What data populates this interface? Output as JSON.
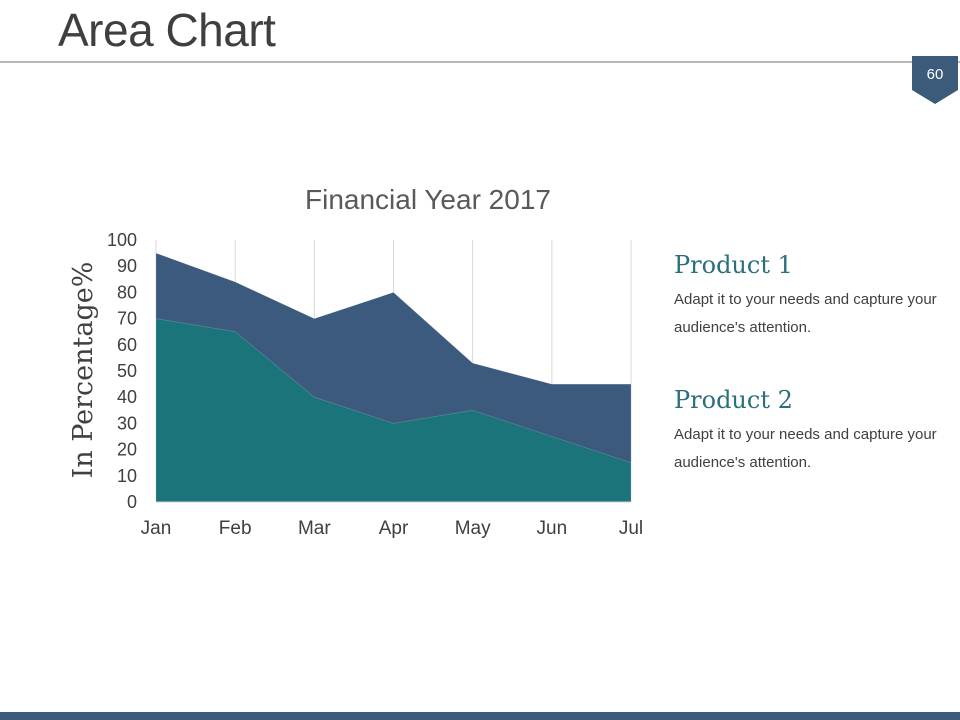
{
  "slide": {
    "title": "Area Chart",
    "page_number": "60"
  },
  "legend": [
    {
      "title": "Product 1",
      "description": "Adapt it to your needs and capture your audience's attention."
    },
    {
      "title": "Product 2",
      "description": "Adapt it to your needs and capture your audience's attention."
    }
  ],
  "colors": {
    "product1": "#3c5a7d",
    "product2": "#1a7479",
    "accent": "#2a6f7a",
    "bottom_bar": "#3c5a79"
  },
  "chart_data": {
    "type": "area",
    "title": "Financial Year 2017",
    "xlabel": "",
    "ylabel": "In Percentage%",
    "categories": [
      "Jan",
      "Feb",
      "Mar",
      "Apr",
      "May",
      "Jun",
      "Jul"
    ],
    "series": [
      {
        "values": [
          95,
          84,
          70,
          80,
          53,
          45,
          45
        ]
      },
      {
        "values": [
          70,
          65,
          40,
          30,
          35,
          25,
          15
        ]
      }
    ],
    "ylim": [
      0,
      100
    ],
    "yticks": [
      0,
      10,
      20,
      30,
      40,
      50,
      60,
      70,
      80,
      90,
      100
    ],
    "grid": "vertical"
  }
}
